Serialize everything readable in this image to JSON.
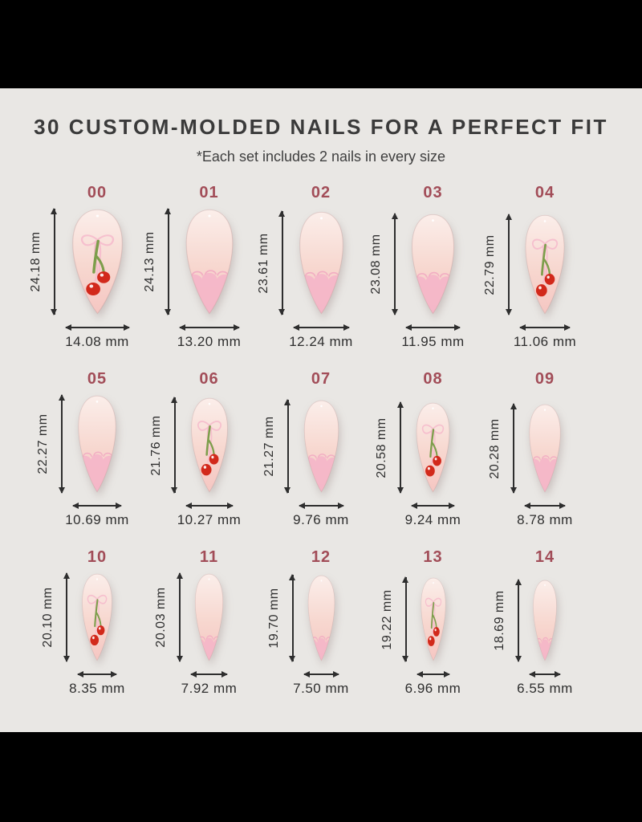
{
  "header": {
    "title": "30 CUSTOM-MOLDED NAILS FOR A PERFECT FIT",
    "subtitle": "*Each set includes 2 nails in every size"
  },
  "unit": "mm",
  "colors": {
    "letterbox": "#000000",
    "background": "#e9e7e4",
    "title": "#3a3a3a",
    "subtitle": "#3f3f3f",
    "size_number": "#a24d58",
    "measure": "#2e2e2e",
    "nail_top": "#fbeeea",
    "nail_mid": "#f7d7cf",
    "nail_bottom": "#f5c6c2",
    "french_tip": "#f4b6c8",
    "lace_outline": "#f2aec3",
    "bow_pink": "#f6bccd",
    "stem_green": "#7d9e4b",
    "cherry_red": "#d2291b",
    "highlight_white": "#ffffff"
  },
  "sizes": [
    {
      "label": "00",
      "height_mm": 24.18,
      "width_mm": 14.08,
      "design": "cherry"
    },
    {
      "label": "01",
      "height_mm": 24.13,
      "width_mm": 13.2,
      "design": "french"
    },
    {
      "label": "02",
      "height_mm": 23.61,
      "width_mm": 12.24,
      "design": "french"
    },
    {
      "label": "03",
      "height_mm": 23.08,
      "width_mm": 11.95,
      "design": "french"
    },
    {
      "label": "04",
      "height_mm": 22.79,
      "width_mm": 11.06,
      "design": "cherry"
    },
    {
      "label": "05",
      "height_mm": 22.27,
      "width_mm": 10.69,
      "design": "french"
    },
    {
      "label": "06",
      "height_mm": 21.76,
      "width_mm": 10.27,
      "design": "cherry"
    },
    {
      "label": "07",
      "height_mm": 21.27,
      "width_mm": 9.76,
      "design": "french"
    },
    {
      "label": "08",
      "height_mm": 20.58,
      "width_mm": 9.24,
      "design": "cherry"
    },
    {
      "label": "09",
      "height_mm": 20.28,
      "width_mm": 8.78,
      "design": "french"
    },
    {
      "label": "10",
      "height_mm": 20.1,
      "width_mm": 8.35,
      "design": "cherry"
    },
    {
      "label": "11",
      "height_mm": 20.03,
      "width_mm": 7.92,
      "design": "french"
    },
    {
      "label": "12",
      "height_mm": 19.7,
      "width_mm": 7.5,
      "design": "french"
    },
    {
      "label": "13",
      "height_mm": 19.22,
      "width_mm": 6.96,
      "design": "cherry"
    },
    {
      "label": "14",
      "height_mm": 18.69,
      "width_mm": 6.55,
      "design": "french"
    }
  ]
}
